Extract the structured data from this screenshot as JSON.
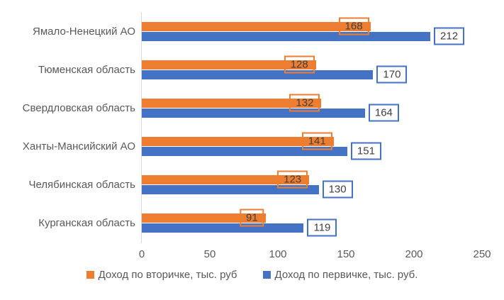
{
  "chart_data": {
    "type": "bar",
    "orientation": "horizontal",
    "title": "",
    "categories": [
      "Ямало-Ненецкий АО",
      "Тюменская область",
      "Свердловская область",
      "Ханты-Мансийский АО",
      "Челябинская область",
      "Курганская область"
    ],
    "series": [
      {
        "name": "Доход по вторичке, тыс. руб",
        "color": "#ED7D31",
        "values": [
          168,
          128,
          132,
          141,
          123,
          91
        ]
      },
      {
        "name": "Доход по первичке, тыс. руб.",
        "color": "#4472C4",
        "values": [
          212,
          170,
          164,
          151,
          130,
          119
        ]
      }
    ],
    "xlim": [
      0,
      250
    ],
    "x_ticks": [
      0,
      50,
      100,
      150,
      200,
      250
    ],
    "grid": false,
    "data_labels": true,
    "legend_position": "bottom"
  },
  "colors": {
    "background": "#FFFFFF",
    "axis_line": "#D9D9D9",
    "axis_text": "#595959",
    "category_text": "#595959",
    "data_label_text": "#404040"
  }
}
